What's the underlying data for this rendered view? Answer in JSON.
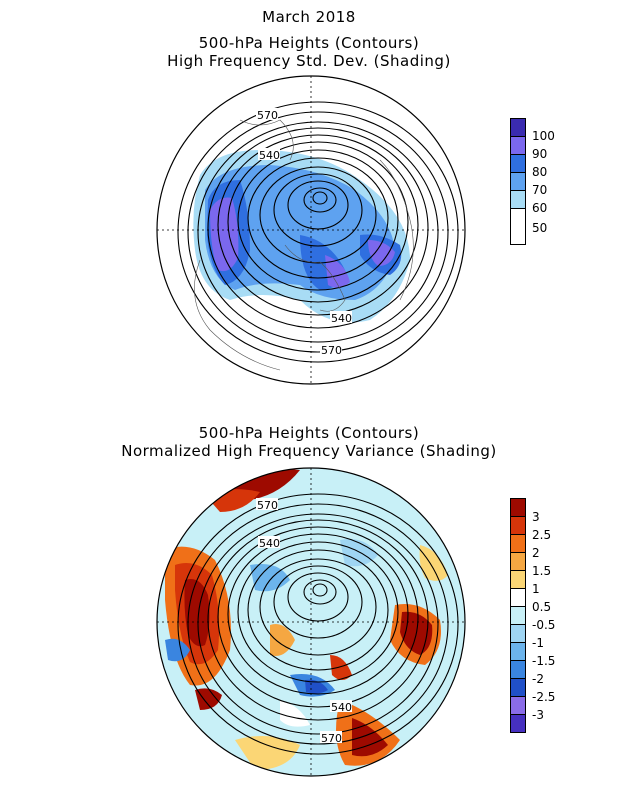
{
  "header": {
    "line1": "March 2018",
    "line2": "500-hPa Heights (Contours)",
    "line3": "High Frequency Std. Dev. (Shading)"
  },
  "panel2": {
    "line1": "500-hPa Heights (Contours)",
    "line2": "Normalized High Frequency Variance (Shading)"
  },
  "contour_labels": {
    "c570": "570",
    "c540": "540"
  },
  "colorbar_top": {
    "labels": [
      "100",
      "90",
      "80",
      "70",
      "60",
      "50"
    ],
    "colors": [
      "#3a2bb0",
      "#7b68ee",
      "#2f6fe0",
      "#5ea2f0",
      "#a8dcf5",
      "#ffffff"
    ]
  },
  "colorbar_bottom": {
    "labels": [
      "3",
      "2.5",
      "2",
      "1.5",
      "1",
      "0.5",
      "-0.5",
      "-1",
      "-1.5",
      "-2",
      "-2.5",
      "-3"
    ],
    "colors": [
      "#9e0a00",
      "#d6350a",
      "#f07018",
      "#f5a742",
      "#fbd675",
      "#ffffff",
      "#c8f0f7",
      "#9fd5f3",
      "#6cb4ec",
      "#3a85e0",
      "#2050c8",
      "#8a6ce8",
      "#4630c0"
    ]
  }
}
